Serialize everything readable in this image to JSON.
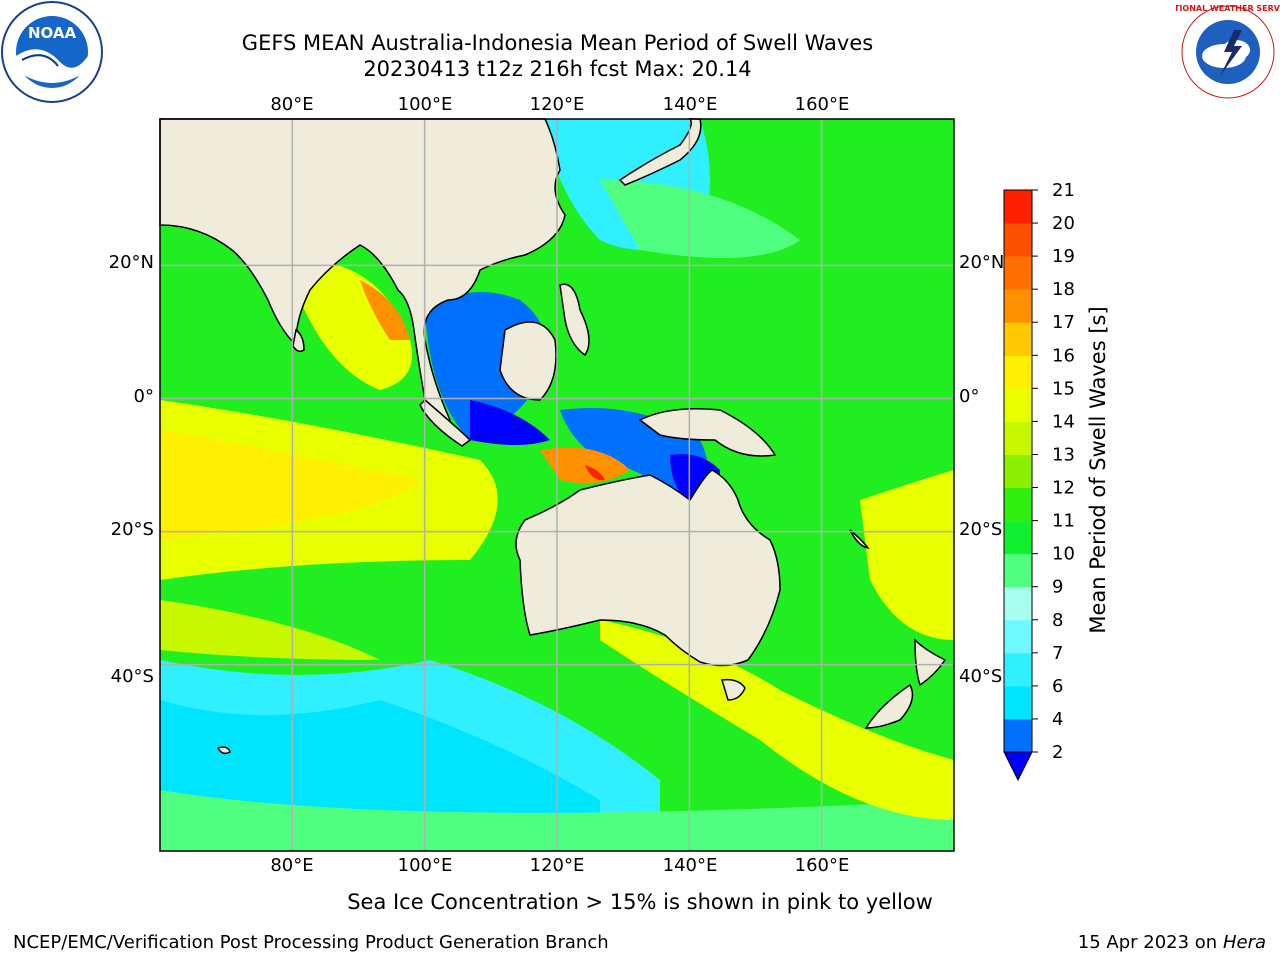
{
  "header": {
    "title_line1": "GEFS MEAN Australia-Indonesia Mean Period of Swell Waves",
    "title_line2": "20230413 t12z 216h fcst   Max: 20.14"
  },
  "logos": {
    "left": "NOAA",
    "right": "NATIONAL WEATHER SERVICE"
  },
  "map": {
    "lon_ticks": [
      "80°E",
      "100°E",
      "120°E",
      "140°E",
      "160°E"
    ],
    "lat_ticks": [
      "20°N",
      "0°",
      "20°S",
      "40°S"
    ],
    "lon_values": [
      80,
      100,
      120,
      140,
      160
    ],
    "lat_values": [
      20,
      0,
      -20,
      -40
    ],
    "extent": {
      "lon": [
        60,
        180
      ],
      "lat": [
        -68,
        42
      ]
    },
    "land_color": "#efecdc",
    "grid_color": "#b0b0b0"
  },
  "colorbar": {
    "label": "Mean Period of Swell Waves [s]",
    "ticks": [
      "2",
      "4",
      "6",
      "7",
      "8",
      "9",
      "10",
      "11",
      "12",
      "13",
      "14",
      "15",
      "16",
      "17",
      "18",
      "19",
      "20",
      "21"
    ],
    "colors": [
      "#0070ff",
      "#00e5ff",
      "#30f0ff",
      "#70f8ff",
      "#a8fff0",
      "#50ff7f",
      "#10f030",
      "#30ef10",
      "#8cf000",
      "#c8f800",
      "#e8ff00",
      "#fff000",
      "#ffc800",
      "#ff9000",
      "#ff7000",
      "#ff5000",
      "#ff2000"
    ],
    "under_color": "#0000ff"
  },
  "footer": {
    "sea_ice": "Sea Ice Concentration > 15% is shown in pink to yellow",
    "credit": "NCEP/EMC/Verification Post Processing Product Generation Branch",
    "date": "15 Apr 2023 on",
    "host": "Hera"
  }
}
